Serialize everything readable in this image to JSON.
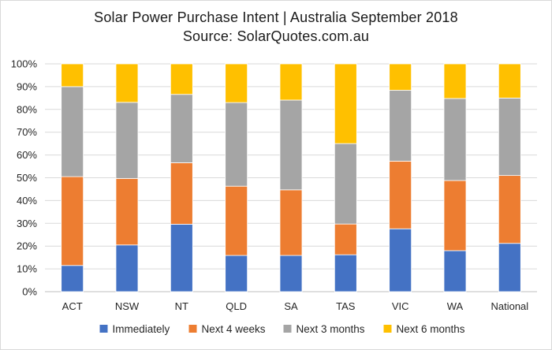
{
  "chart_data": {
    "type": "bar",
    "stacked": true,
    "title": "Solar Power Purchase Intent | Australia September 2018",
    "subtitle": "Source: SolarQuotes.com.au",
    "xlabel": "",
    "ylabel": "",
    "ylim": [
      0,
      100
    ],
    "yticks": [
      "0%",
      "10%",
      "20%",
      "30%",
      "40%",
      "50%",
      "60%",
      "70%",
      "80%",
      "90%",
      "100%"
    ],
    "grid": "horizontal",
    "legend_position": "bottom",
    "categories": [
      "ACT",
      "NSW",
      "NT",
      "QLD",
      "SA",
      "TAS",
      "VIC",
      "WA",
      "National"
    ],
    "series": [
      {
        "name": "Immediately",
        "color": "#4472C4",
        "values": [
          11.5,
          20.5,
          29.6,
          15.9,
          15.9,
          16.2,
          27.6,
          18.0,
          21.2
        ]
      },
      {
        "name": "Next 4 weeks",
        "color": "#ED7D31",
        "values": [
          39.0,
          29.2,
          27.0,
          30.4,
          28.8,
          13.5,
          29.7,
          30.8,
          29.8
        ]
      },
      {
        "name": "Next 3 months",
        "color": "#A5A5A5",
        "values": [
          39.5,
          33.4,
          30.0,
          36.7,
          39.4,
          35.3,
          31.1,
          36.0,
          34.0
        ]
      },
      {
        "name": "Next 6 months",
        "color": "#FFC000",
        "values": [
          10.0,
          16.9,
          13.4,
          17.0,
          15.9,
          35.0,
          11.6,
          15.2,
          15.0
        ]
      }
    ]
  }
}
